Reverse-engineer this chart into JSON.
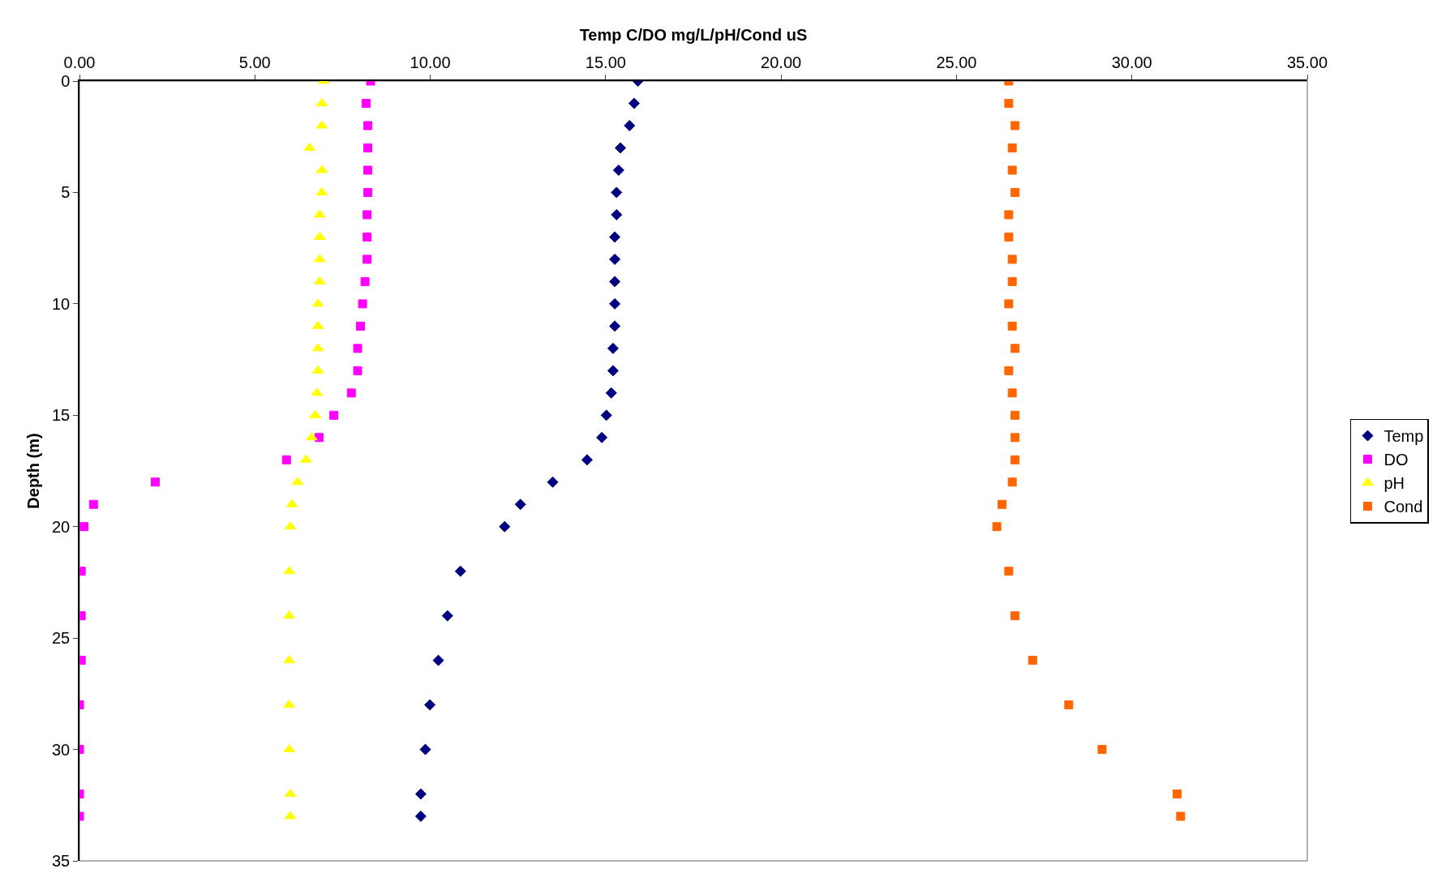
{
  "chart_data": {
    "type": "scatter",
    "xlabel": "Temp C/DO mg/L/pH/Cond uS",
    "ylabel": "Depth (m)",
    "xlim": [
      0,
      35
    ],
    "xticks": [
      {
        "value": 0,
        "label": "0.00"
      },
      {
        "value": 5,
        "label": "5.00"
      },
      {
        "value": 10,
        "label": "10.00"
      },
      {
        "value": 15,
        "label": "15.00"
      },
      {
        "value": 20,
        "label": "20.00"
      },
      {
        "value": 25,
        "label": "25.00"
      },
      {
        "value": 30,
        "label": "30.00"
      },
      {
        "value": 35,
        "label": "35.00"
      }
    ],
    "ylim": [
      35,
      0
    ],
    "yticks": [
      0,
      5,
      10,
      15,
      20,
      25,
      30,
      35
    ],
    "grid": false,
    "legend": "right",
    "series": [
      {
        "name": "Temp",
        "color": "#000080",
        "marker": "diamond",
        "x": [
          15.92,
          15.81,
          15.68,
          15.42,
          15.37,
          15.31,
          15.31,
          15.26,
          15.26,
          15.26,
          15.26,
          15.26,
          15.21,
          15.21,
          15.16,
          15.02,
          14.89,
          14.47,
          13.49,
          12.57,
          12.12,
          10.86,
          10.49,
          10.23,
          9.99,
          9.86,
          9.73,
          9.73
        ],
        "values": [
          0,
          1,
          2,
          3,
          4,
          5,
          6,
          7,
          8,
          9,
          10,
          11,
          12,
          13,
          14,
          15,
          16,
          17,
          18,
          19,
          20,
          22,
          24,
          26,
          28,
          30,
          32,
          33
        ]
      },
      {
        "name": "DO",
        "color": "#ff00ff",
        "marker": "square",
        "x": [
          8.3,
          8.17,
          8.22,
          8.22,
          8.22,
          8.22,
          8.2,
          8.2,
          8.2,
          8.14,
          8.07,
          8.01,
          7.93,
          7.93,
          7.75,
          7.25,
          6.83,
          5.9,
          2.16,
          0.4,
          0.13,
          0.05,
          0.05,
          0.05,
          0,
          0,
          0,
          0
        ],
        "values": [
          0,
          1,
          2,
          3,
          4,
          5,
          6,
          7,
          8,
          9,
          10,
          11,
          12,
          13,
          14,
          15,
          16,
          17,
          18,
          19,
          20,
          22,
          24,
          26,
          28,
          30,
          32,
          33
        ]
      },
      {
        "name": "pH",
        "color": "#ffff00",
        "marker": "triangle",
        "x": [
          6.96,
          6.91,
          6.91,
          6.56,
          6.91,
          6.91,
          6.85,
          6.85,
          6.85,
          6.85,
          6.8,
          6.8,
          6.8,
          6.8,
          6.77,
          6.72,
          6.62,
          6.46,
          6.22,
          6.06,
          6.01,
          5.98,
          5.98,
          5.98,
          5.98,
          5.98,
          6.01,
          6.01
        ],
        "values": [
          0,
          1,
          2,
          3,
          4,
          5,
          6,
          7,
          8,
          9,
          10,
          11,
          12,
          13,
          14,
          15,
          16,
          17,
          18,
          19,
          20,
          22,
          24,
          26,
          28,
          30,
          32,
          33
        ]
      },
      {
        "name": "Cond",
        "color": "#ff6600",
        "marker": "square",
        "x": [
          26.49,
          26.49,
          26.67,
          26.59,
          26.59,
          26.67,
          26.49,
          26.49,
          26.59,
          26.59,
          26.49,
          26.59,
          26.67,
          26.49,
          26.59,
          26.67,
          26.67,
          26.67,
          26.59,
          26.3,
          26.15,
          26.49,
          26.67,
          27.17,
          28.2,
          29.15,
          31.29,
          31.39
        ],
        "values": [
          0,
          1,
          2,
          3,
          4,
          5,
          6,
          7,
          8,
          9,
          10,
          11,
          12,
          13,
          14,
          15,
          16,
          17,
          18,
          19,
          20,
          22,
          24,
          26,
          28,
          30,
          32,
          33
        ]
      }
    ]
  }
}
